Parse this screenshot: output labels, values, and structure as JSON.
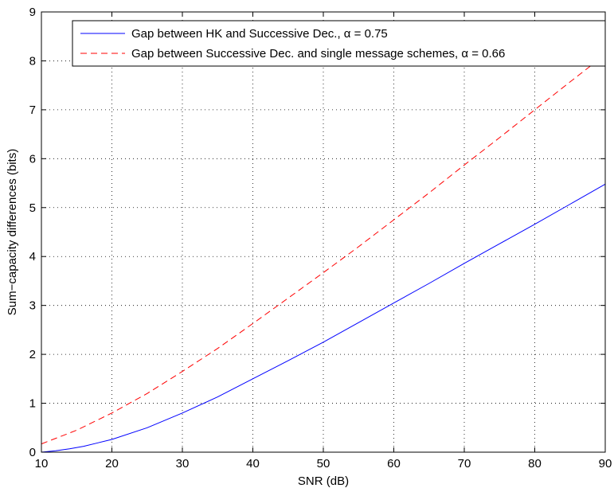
{
  "chart_data": {
    "type": "line",
    "xlabel": "SNR (dB)",
    "ylabel": "Sum−capacity differences (bits)",
    "xlim": [
      10,
      90
    ],
    "ylim": [
      0,
      9
    ],
    "xticks": [
      10,
      20,
      30,
      40,
      50,
      60,
      70,
      80,
      90
    ],
    "yticks": [
      0,
      1,
      2,
      3,
      4,
      5,
      6,
      7,
      8,
      9
    ],
    "grid": true,
    "grid_style": "dotted",
    "legend_position": "top-right",
    "series": [
      {
        "name": "Gap between HK and Successive Dec., α = 0.75",
        "color": "#0000ff",
        "line_style": "solid",
        "x": [
          10,
          12,
          14,
          16,
          18,
          20,
          25,
          30,
          35,
          40,
          45,
          50,
          55,
          60,
          65,
          70,
          75,
          80,
          85,
          90
        ],
        "y": [
          0.0,
          0.03,
          0.07,
          0.12,
          0.19,
          0.26,
          0.5,
          0.8,
          1.13,
          1.5,
          1.87,
          2.25,
          2.65,
          3.05,
          3.45,
          3.86,
          4.26,
          4.66,
          5.07,
          5.48
        ]
      },
      {
        "name": "Gap between Successive Dec. and single message schemes, α = 0.66",
        "color": "#ff0000",
        "line_style": "dashed",
        "x": [
          10,
          15,
          20,
          25,
          30,
          35,
          40,
          45,
          50,
          55,
          60,
          65,
          70,
          75,
          80,
          85,
          90
        ],
        "y": [
          0.17,
          0.45,
          0.8,
          1.2,
          1.65,
          2.12,
          2.63,
          3.15,
          3.67,
          4.2,
          4.75,
          5.3,
          5.87,
          6.43,
          7.0,
          7.57,
          8.13
        ]
      }
    ]
  }
}
